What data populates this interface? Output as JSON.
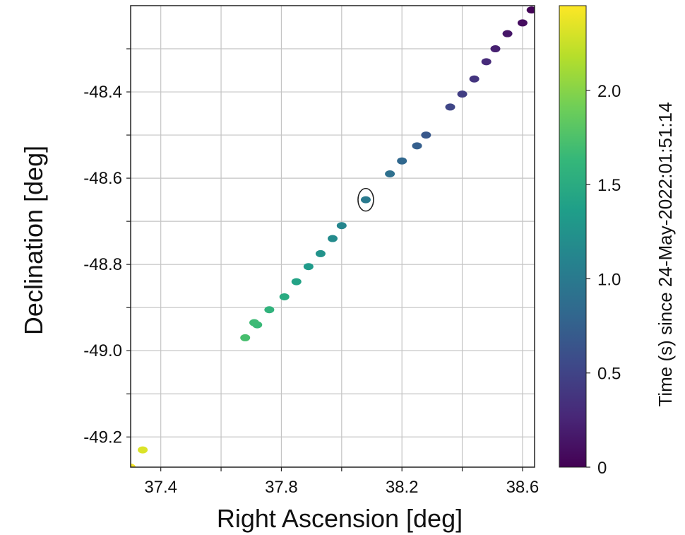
{
  "chart_data": {
    "type": "scatter",
    "xlabel": "Right Ascension [deg]",
    "ylabel": "Declination [deg]",
    "xlim": [
      37.3,
      38.64
    ],
    "ylim": [
      -49.27,
      -48.2
    ],
    "xticks": [
      37.4,
      37.8,
      38.2,
      38.6
    ],
    "xtick_labels": [
      "37.4",
      "37.8",
      "38.2",
      "38.6"
    ],
    "yticks": [
      -48.4,
      -48.6,
      -48.8,
      -49.0,
      -49.2
    ],
    "ytick_labels": [
      "-48.4",
      "-48.6",
      "-48.8",
      "-49.0",
      "-49.2"
    ],
    "grid": true,
    "colorbar": {
      "label": "Time (s) since 24-May-2022:01:51:14",
      "range": [
        0,
        2.45
      ],
      "ticks": [
        0,
        0.5,
        1.0,
        1.5,
        2.0
      ],
      "tick_labels": [
        "0",
        "0.5",
        "1.0",
        "1.5",
        "2.0"
      ],
      "colormap": "viridis",
      "colormap_stops": [
        "#440154",
        "#482878",
        "#3e4989",
        "#31688e",
        "#26828e",
        "#1f9e89",
        "#35b779",
        "#6ece58",
        "#b5de2b",
        "#fde725"
      ]
    },
    "points": [
      {
        "x": 38.63,
        "y": -48.21,
        "t": 0.02
      },
      {
        "x": 38.6,
        "y": -48.24,
        "t": 0.08
      },
      {
        "x": 38.55,
        "y": -48.265,
        "t": 0.15
      },
      {
        "x": 38.51,
        "y": -48.3,
        "t": 0.22
      },
      {
        "x": 38.48,
        "y": -48.33,
        "t": 0.3
      },
      {
        "x": 38.44,
        "y": -48.37,
        "t": 0.38
      },
      {
        "x": 38.4,
        "y": -48.405,
        "t": 0.45
      },
      {
        "x": 38.36,
        "y": -48.435,
        "t": 0.52
      },
      {
        "x": 38.28,
        "y": -48.5,
        "t": 0.68
      },
      {
        "x": 38.25,
        "y": -48.525,
        "t": 0.74
      },
      {
        "x": 38.2,
        "y": -48.56,
        "t": 0.82
      },
      {
        "x": 38.16,
        "y": -48.59,
        "t": 0.9
      },
      {
        "x": 38.08,
        "y": -48.65,
        "t": 1.0
      },
      {
        "x": 38.0,
        "y": -48.71,
        "t": 1.12
      },
      {
        "x": 37.97,
        "y": -48.74,
        "t": 1.18
      },
      {
        "x": 37.93,
        "y": -48.775,
        "t": 1.25
      },
      {
        "x": 37.89,
        "y": -48.805,
        "t": 1.33
      },
      {
        "x": 37.85,
        "y": -48.84,
        "t": 1.42
      },
      {
        "x": 37.81,
        "y": -48.875,
        "t": 1.5
      },
      {
        "x": 37.76,
        "y": -48.905,
        "t": 1.58
      },
      {
        "x": 37.72,
        "y": -48.94,
        "t": 1.65
      },
      {
        "x": 37.71,
        "y": -48.935,
        "t": 1.67
      },
      {
        "x": 37.68,
        "y": -48.97,
        "t": 1.72
      },
      {
        "x": 37.34,
        "y": -49.23,
        "t": 2.32
      },
      {
        "x": 37.3,
        "y": -49.27,
        "t": 2.42
      }
    ],
    "annotations": [
      {
        "type": "ellipse",
        "x": 38.08,
        "y": -48.65
      }
    ]
  }
}
